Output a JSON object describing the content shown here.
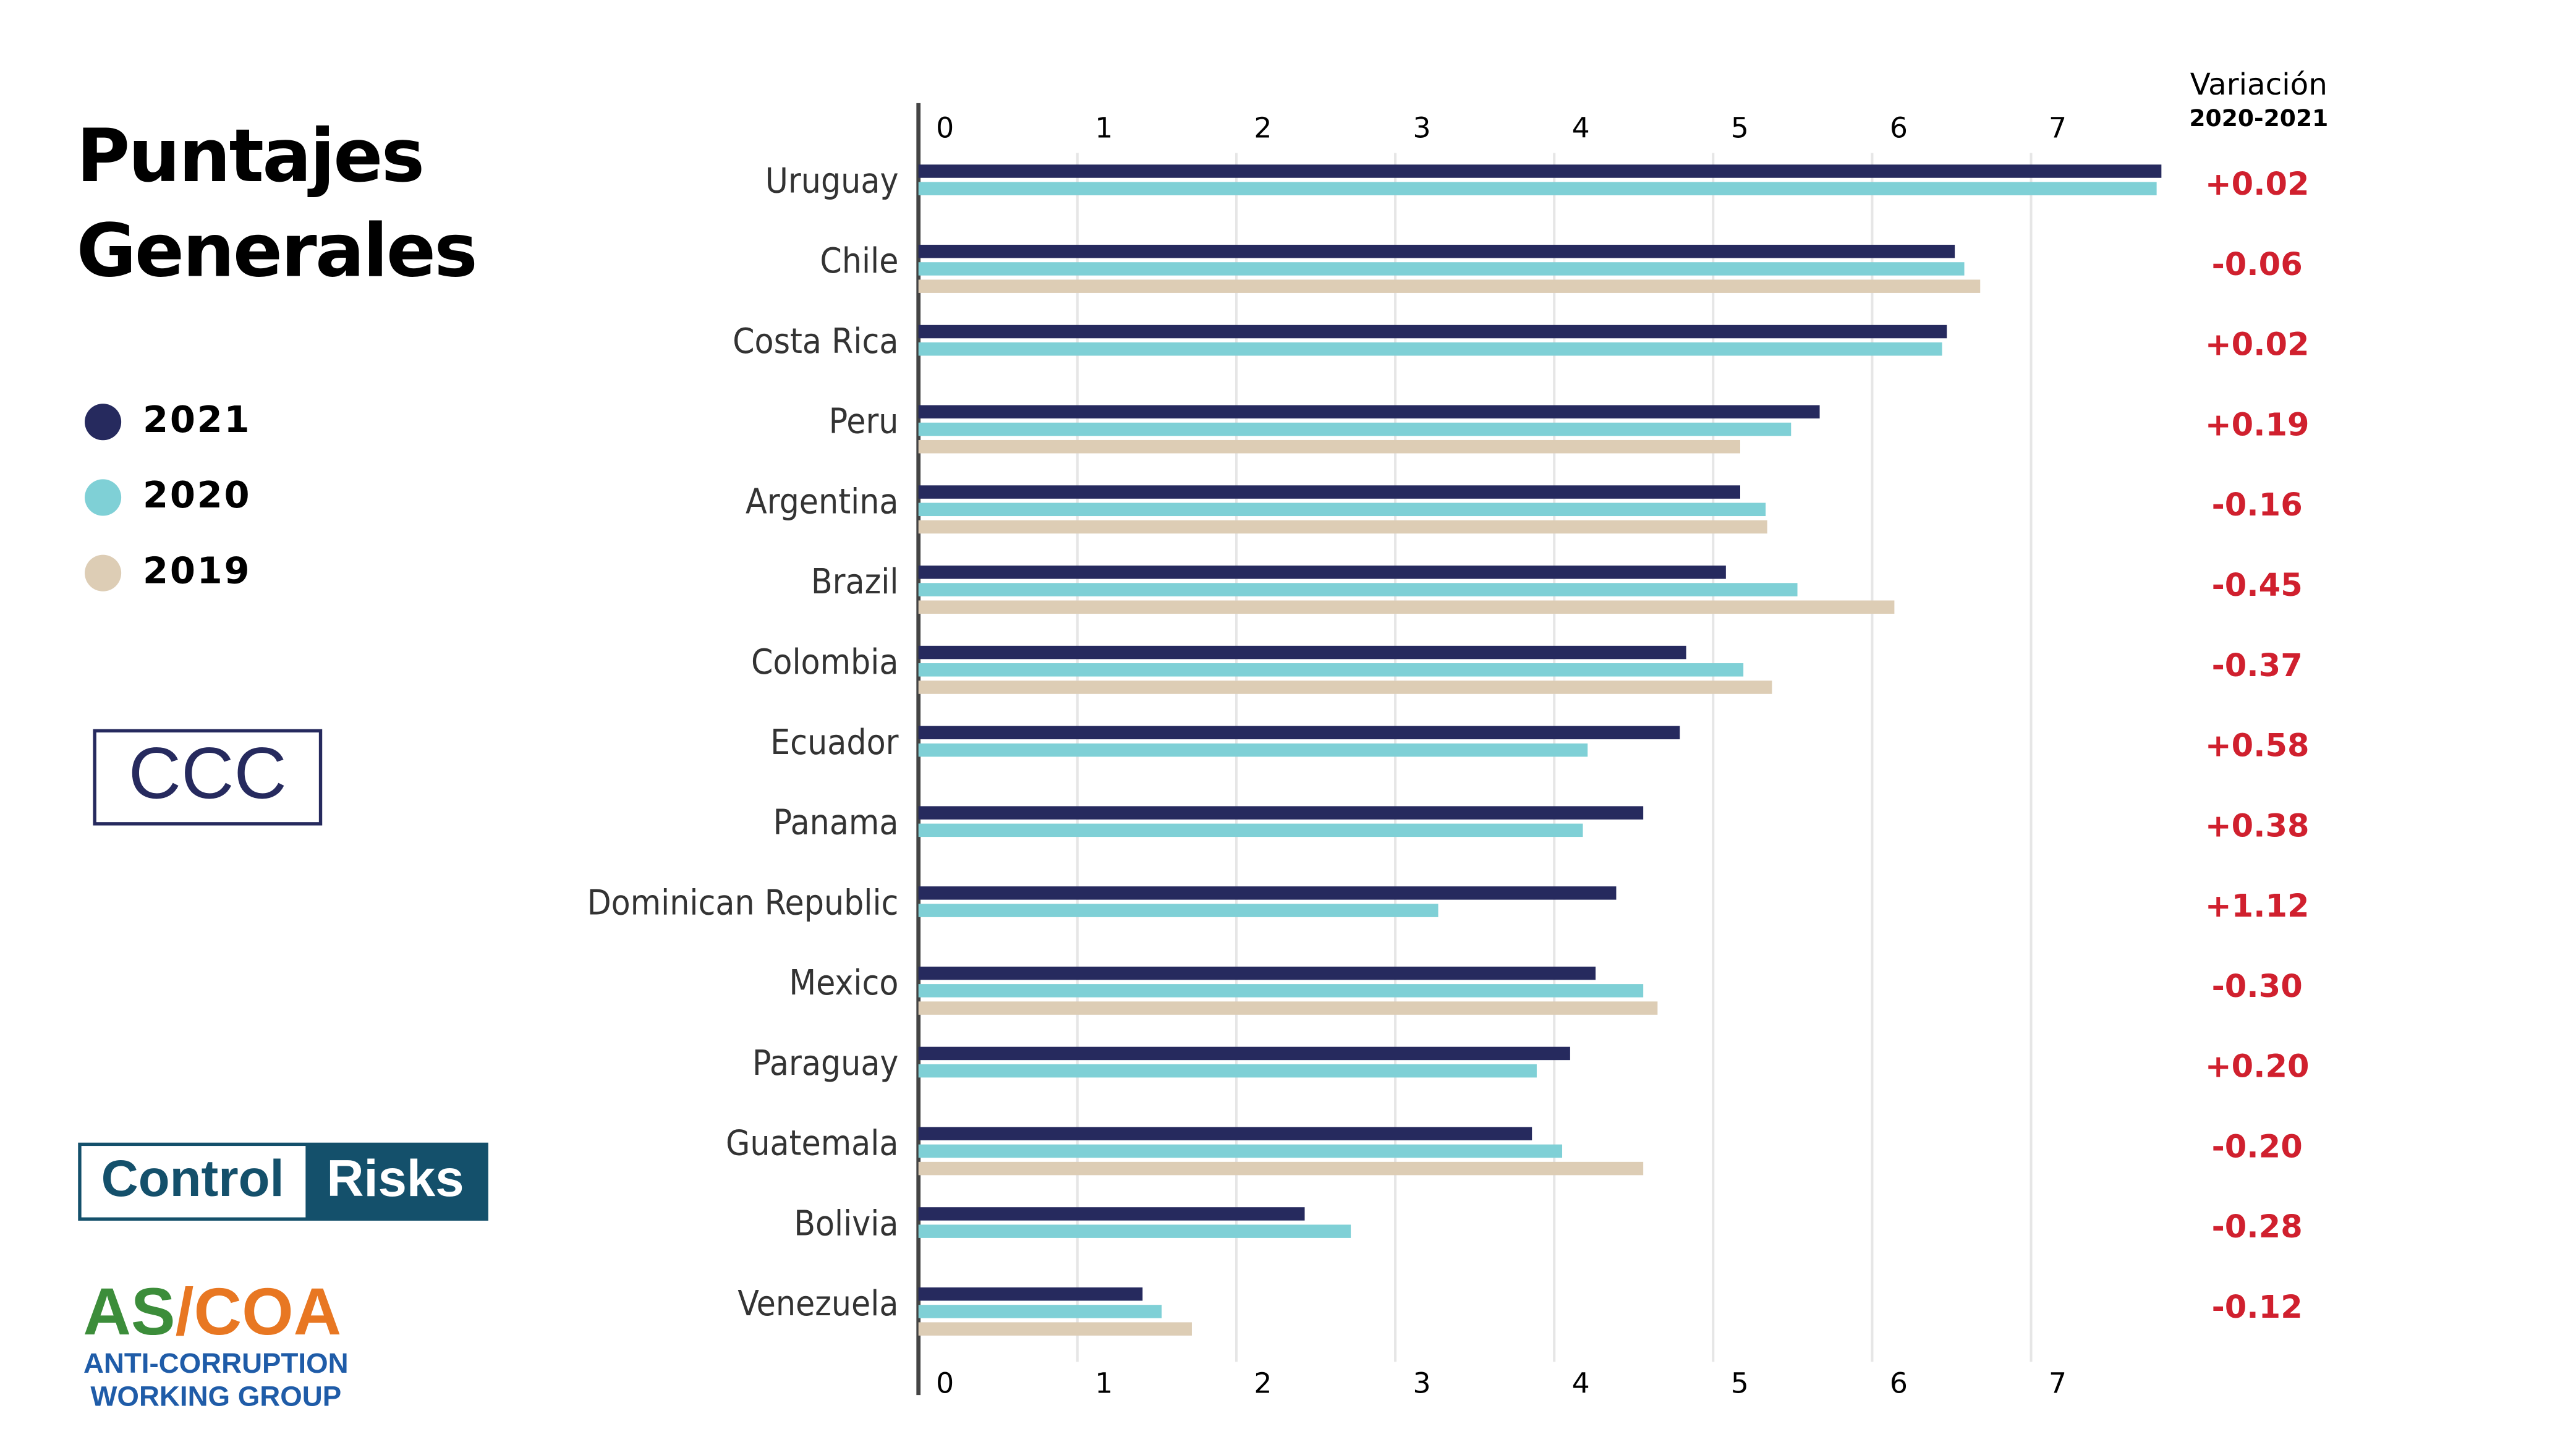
{
  "chart_data": {
    "type": "hbar",
    "title": "Puntajes Generales",
    "categories": [
      "Uruguay",
      "Chile",
      "Costa Rica",
      "Peru",
      "Argentina",
      "Brazil",
      "Colombia",
      "Ecuador",
      "Panama",
      "Dominican Republic",
      "Mexico",
      "Paraguay",
      "Guatemala",
      "Bolivia",
      "Venezuela"
    ],
    "series": [
      {
        "name": "2021",
        "color": "#262a5e",
        "values": [
          7.82,
          6.52,
          6.47,
          5.67,
          5.17,
          5.08,
          4.83,
          4.79,
          4.56,
          4.39,
          4.26,
          4.1,
          3.86,
          2.43,
          1.41
        ]
      },
      {
        "name": "2020",
        "color": "#7fd0d6",
        "values": [
          7.79,
          6.58,
          6.44,
          5.49,
          5.33,
          5.53,
          5.19,
          4.21,
          4.18,
          3.27,
          4.56,
          3.89,
          4.05,
          2.72,
          1.53
        ]
      },
      {
        "name": "2019",
        "color": "#ddcdb5",
        "values": [
          null,
          6.68,
          null,
          5.17,
          5.34,
          6.14,
          5.37,
          null,
          null,
          null,
          4.65,
          null,
          4.56,
          null,
          1.72
        ]
      }
    ],
    "xlim": [
      0,
      8
    ],
    "xticks": [
      0,
      1,
      2,
      3,
      4,
      5,
      6,
      7
    ],
    "grid": true,
    "variation": {
      "title": "Variación",
      "subtitle": "2020-2021",
      "color": "#d0202e",
      "labels": [
        "+0.02",
        "-0.06",
        "+0.02",
        "+0.19",
        "-0.16",
        "-0.45",
        "-0.37",
        "+0.58",
        "+0.38",
        "+1.12",
        "-0.30",
        "+0.20",
        "-0.20",
        "-0.28",
        "-0.12"
      ]
    }
  },
  "logos": {
    "ccc": "CCC",
    "control": "Control",
    "risks": "Risks",
    "as": "AS",
    "slash": "/",
    "coa": "COA",
    "line1": "ANTI-CORRUPTION",
    "line2": "WORKING GROUP"
  }
}
